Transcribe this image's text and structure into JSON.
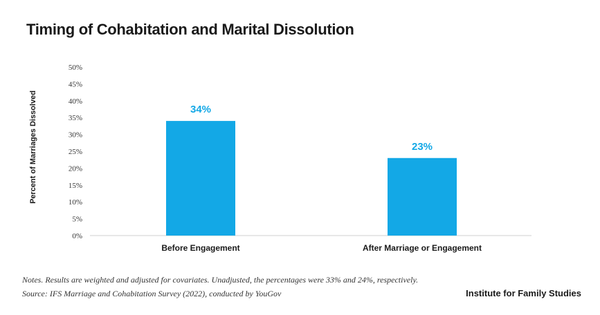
{
  "chart_data": {
    "type": "bar",
    "title": "Timing of Cohabitation and Marital Dissolution",
    "categories": [
      "Before Engagement",
      "After Marriage or Engagement"
    ],
    "values": [
      34,
      23
    ],
    "data_labels": [
      "34%",
      "23%"
    ],
    "ylabel": "Percent of Marriages Dissolved",
    "xlabel": "",
    "ylim": [
      0,
      50
    ],
    "yticks": [
      "0%",
      "5%",
      "10%",
      "15%",
      "20%",
      "25%",
      "30%",
      "35%",
      "40%",
      "45%",
      "50%"
    ],
    "grid": false,
    "bar_color": "#13a8e6"
  },
  "notes": {
    "line1": "Notes. Results are weighted and adjusted for covariates. Unadjusted, the percentages were 33% and 24%, respectively.",
    "line2": "Source: IFS Marriage and Cohabitation Survey (2022), conducted by YouGov"
  },
  "organization": "Institute for Family Studies"
}
